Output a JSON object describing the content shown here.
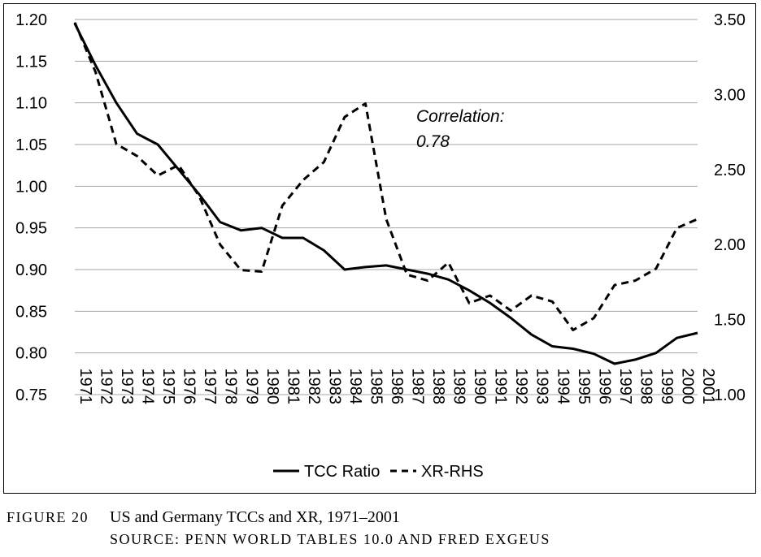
{
  "chart_data": {
    "type": "line",
    "x": [
      "1971",
      "1972",
      "1973",
      "1974",
      "1975",
      "1976",
      "1977",
      "1978",
      "1979",
      "1980",
      "1981",
      "1982",
      "1983",
      "1984",
      "1985",
      "1986",
      "1987",
      "1988",
      "1989",
      "1990",
      "1991",
      "1992",
      "1993",
      "1994",
      "1995",
      "1996",
      "1997",
      "1998",
      "1999",
      "2000",
      "2001"
    ],
    "series": [
      {
        "name": "TCC Ratio",
        "axis": "left",
        "style": "solid",
        "values": [
          1.195,
          1.145,
          1.1,
          1.063,
          1.05,
          1.02,
          0.99,
          0.957,
          0.947,
          0.95,
          0.938,
          0.938,
          0.923,
          0.9,
          0.903,
          0.905,
          0.9,
          0.895,
          0.888,
          0.875,
          0.86,
          0.842,
          0.822,
          0.808,
          0.805,
          0.799,
          0.787,
          0.792,
          0.8,
          0.818,
          0.824
        ]
      },
      {
        "name": "XR-RHS",
        "axis": "right",
        "style": "dashed",
        "values": [
          3.48,
          3.15,
          2.67,
          2.59,
          2.46,
          2.53,
          2.32,
          2.0,
          1.83,
          1.82,
          2.26,
          2.43,
          2.55,
          2.85,
          2.94,
          2.17,
          1.8,
          1.76,
          1.88,
          1.61,
          1.66,
          1.56,
          1.66,
          1.62,
          1.43,
          1.51,
          1.73,
          1.76,
          1.84,
          2.11,
          2.17
        ]
      }
    ],
    "yleft": {
      "min": 0.75,
      "max": 1.2,
      "ticks": [
        "0.75",
        "0.80",
        "0.85",
        "0.90",
        "0.95",
        "1.00",
        "1.05",
        "1.10",
        "1.15",
        "1.20"
      ]
    },
    "yright": {
      "min": 1.0,
      "max": 3.5,
      "ticks": [
        "1.00",
        "1.50",
        "2.00",
        "2.50",
        "3.00",
        "3.50"
      ]
    },
    "grid": true,
    "legend_position": "bottom",
    "annotation": {
      "line1": "Correlation:",
      "line2": "0.78"
    }
  },
  "caption": {
    "label": "FIGURE 20",
    "title": "US and Germany TCCs and XR, 1971–2001",
    "source": "SOURCE: PENN WORLD TABLES 10.0 AND FRED EXGEUS"
  }
}
